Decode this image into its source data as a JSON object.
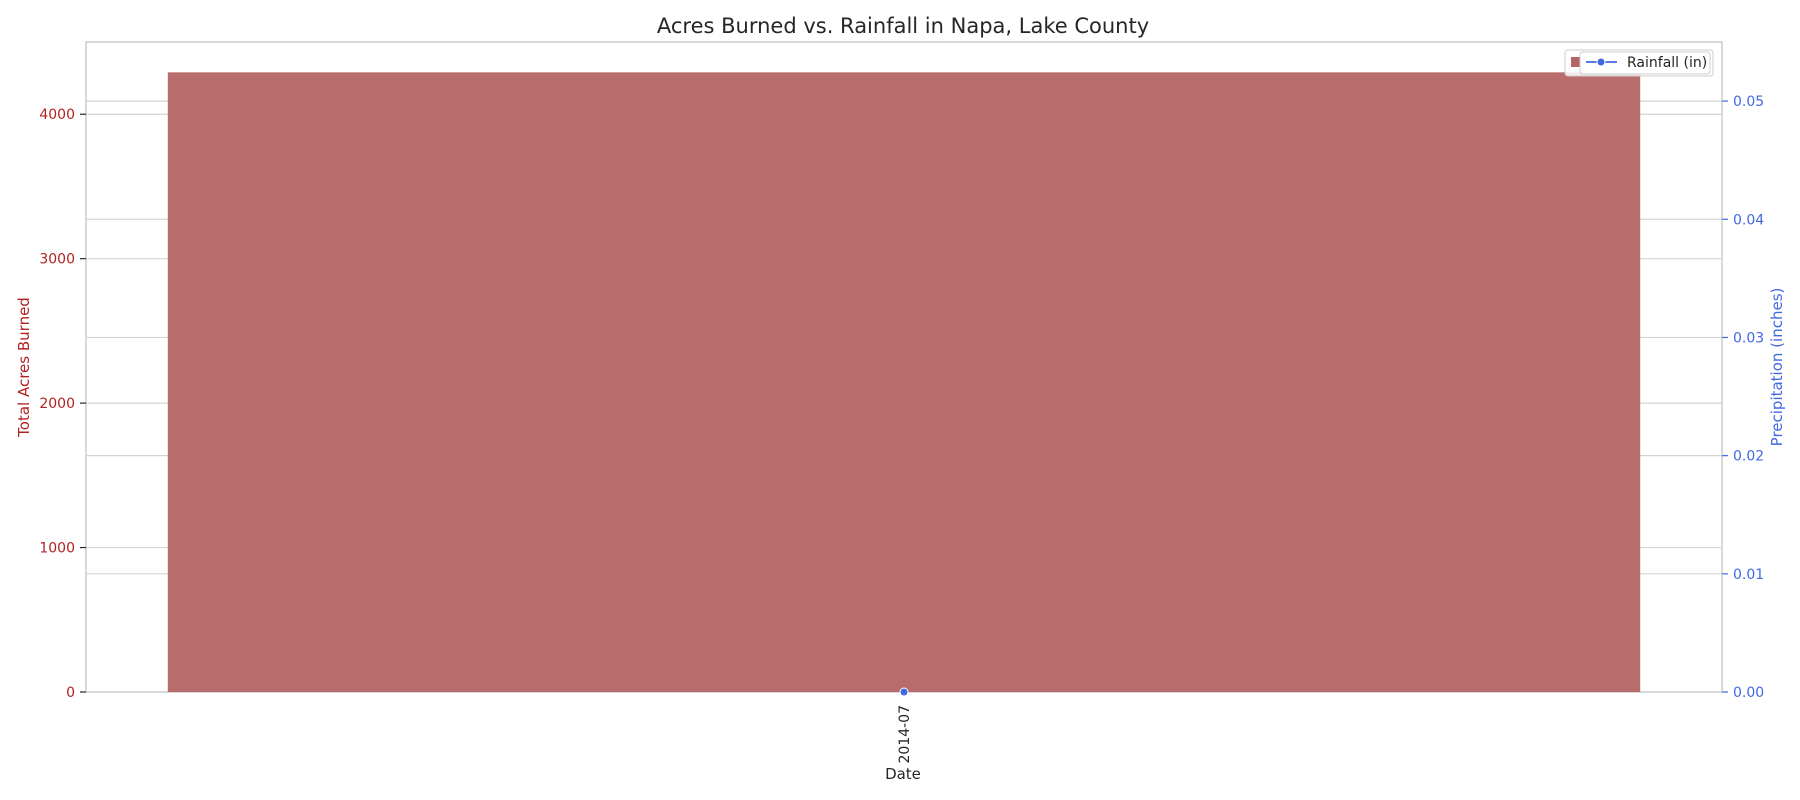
{
  "chart_data": {
    "type": "bar",
    "title": "Acres Burned vs. Rainfall in Napa, Lake County",
    "xlabel": "Date",
    "categories": [
      "2014-07"
    ],
    "left_axis": {
      "label": "Total Acres Burned",
      "ylim": [
        0,
        4500
      ],
      "ticks": [
        0,
        1000,
        2000,
        3000,
        4000
      ],
      "tick_labels": [
        "0",
        "1000",
        "2000",
        "3000",
        "4000"
      ],
      "color": "#b22222"
    },
    "right_axis": {
      "label": "Precipitation (inches)",
      "ylim": [
        0,
        0.055
      ],
      "ticks": [
        0.0,
        0.01,
        0.02,
        0.03,
        0.04,
        0.05
      ],
      "tick_labels": [
        "0.00",
        "0.01",
        "0.02",
        "0.03",
        "0.04",
        "0.05"
      ],
      "color": "#4169e1"
    },
    "series": [
      {
        "type": "bar",
        "axis": "left",
        "values": [
          4290
        ],
        "color": "#b56464"
      },
      {
        "name": "Rainfall (in)",
        "type": "line",
        "axis": "right",
        "values": [
          0.0
        ],
        "color": "#4169e1"
      }
    ],
    "legend_position": "top-right",
    "grid": true
  }
}
